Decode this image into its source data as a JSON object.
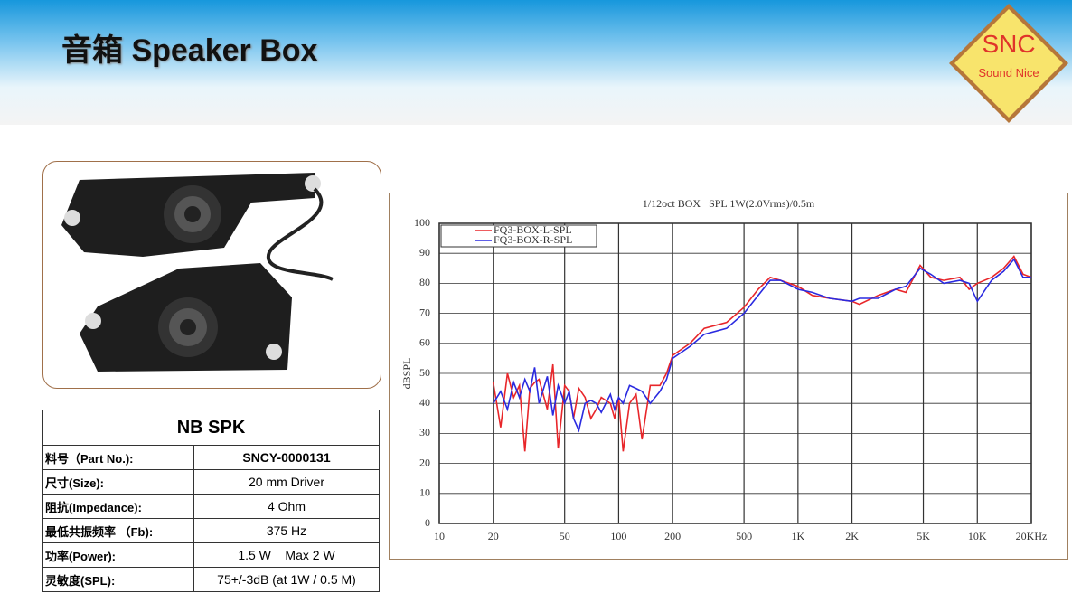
{
  "header": {
    "title": "音箱  Speaker Box"
  },
  "logo": {
    "text": "SNC",
    "subtitle": "Sound Nice"
  },
  "table": {
    "title": "NB SPK",
    "rows": [
      [
        "料号（Part No.):",
        "SNCY-0000131"
      ],
      [
        "尺寸(Size):",
        "20 mm Driver"
      ],
      [
        "阻抗(Impedance):",
        "4 Ohm"
      ],
      [
        "最低共振频率 （Fb):",
        "375 Hz"
      ],
      [
        "功率(Power):",
        "1.5 W    Max 2 W"
      ],
      [
        "灵敏度(SPL):",
        "75+/-3dB (at 1W / 0.5 M)"
      ]
    ]
  },
  "chart_data": {
    "type": "line",
    "title": "1/12oct BOX   SPL 1W(2.0Vrms)/0.5m",
    "ylabel": "dBSPL",
    "xscale": "log",
    "grid": true,
    "legend": "top-left",
    "xlim": [
      10,
      20000
    ],
    "ylim": [
      0,
      100
    ],
    "xticks": [
      10,
      20,
      50,
      100,
      200,
      500,
      {
        "value": 1000,
        "label": "1K"
      },
      {
        "value": 2000,
        "label": "2K"
      },
      {
        "value": 5000,
        "label": "5K"
      },
      {
        "value": 10000,
        "label": "10K"
      },
      {
        "value": 20000,
        "label": "20KHz"
      }
    ],
    "yticks": [
      0,
      10,
      20,
      30,
      40,
      50,
      60,
      70,
      80,
      90,
      100
    ],
    "x": [
      20,
      22,
      24,
      26,
      28,
      30,
      32,
      34,
      36,
      40,
      43,
      46,
      50,
      53,
      56,
      60,
      65,
      70,
      75,
      80,
      90,
      95,
      100,
      106,
      115,
      125,
      135,
      150,
      170,
      185,
      200,
      250,
      300,
      400,
      500,
      600,
      700,
      800,
      1000,
      1200,
      1500,
      2000,
      2200,
      2800,
      3500,
      4000,
      4800,
      5500,
      6500,
      8000,
      9000,
      10000,
      12000,
      14000,
      16000,
      18000,
      20000
    ],
    "series": [
      {
        "name": "FQ3-BOX-L-SPL",
        "color": "#e8262a",
        "values": [
          47,
          32,
          50,
          42,
          46,
          24,
          45,
          47,
          48,
          38,
          53,
          25,
          46,
          44,
          35,
          45,
          42,
          35,
          38,
          42,
          40,
          35,
          42,
          24,
          40,
          43,
          28,
          46,
          46,
          50,
          56,
          60,
          65,
          67,
          72,
          78,
          82,
          81,
          79,
          76,
          75,
          74,
          73,
          76,
          78,
          77,
          86,
          82,
          81,
          82,
          78,
          80,
          82,
          85,
          89,
          83,
          82
        ]
      },
      {
        "name": "FQ3-BOX-R-SPL",
        "color": "#2a2ae0",
        "values": [
          40,
          44,
          38,
          47,
          42,
          48,
          44,
          52,
          40,
          49,
          36,
          46,
          40,
          44,
          35,
          31,
          40,
          41,
          40,
          37,
          43,
          38,
          42,
          40,
          46,
          45,
          44,
          40,
          44,
          48,
          55,
          59,
          63,
          65,
          70,
          76,
          81,
          81,
          78,
          77,
          75,
          74,
          75,
          75,
          78,
          79,
          85,
          83,
          80,
          81,
          80,
          74,
          81,
          84,
          88,
          82,
          82
        ]
      }
    ]
  }
}
